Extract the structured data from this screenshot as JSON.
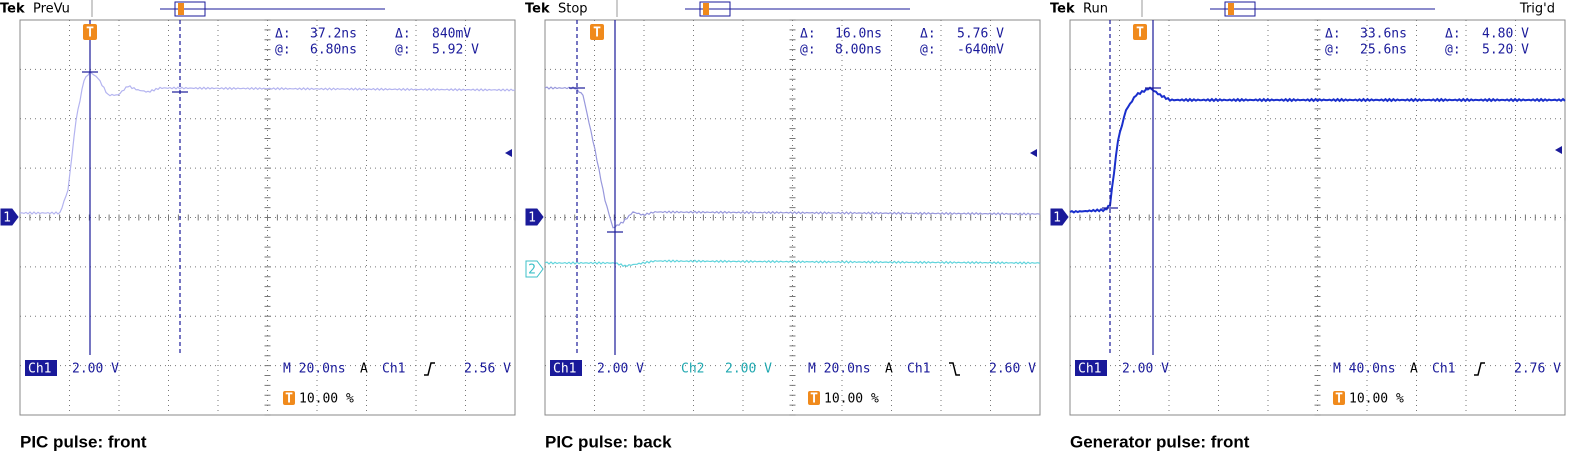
{
  "panels": [
    {
      "brand": "Tek",
      "status": "PreVu",
      "readouts": [
        [
          "Δ:",
          "37.2ns",
          "Δ:",
          "840mV"
        ],
        [
          "@:",
          "6.80ns",
          "@:",
          "5.92 V"
        ]
      ],
      "channels": [
        {
          "name": "Ch1",
          "scale": "2.00 V"
        }
      ],
      "timebase": "M 20.0ns",
      "trigger_mode": "A",
      "trigger_source": "Ch1",
      "trigger_slope": "rising",
      "trigger_level": "2.56 V",
      "trigger_marker": "T",
      "trigger_position": "10.00 %",
      "channel_markers": [
        "1"
      ],
      "caption": "PIC pulse: front"
    },
    {
      "brand": "Tek",
      "status": "Stop",
      "readouts": [
        [
          "Δ:",
          "16.0ns",
          "Δ:",
          "5.76 V"
        ],
        [
          "@:",
          "8.00ns",
          "@:",
          "-640mV"
        ]
      ],
      "channels": [
        {
          "name": "Ch1",
          "scale": "2.00 V"
        },
        {
          "name": "Ch2",
          "scale": "2.00 V"
        }
      ],
      "timebase": "M 20.0ns",
      "trigger_mode": "A",
      "trigger_source": "Ch1",
      "trigger_slope": "falling",
      "trigger_level": "2.60 V",
      "trigger_marker": "T",
      "trigger_position": "10.00 %",
      "channel_markers": [
        "1",
        "2"
      ],
      "caption": "PIC pulse: back"
    },
    {
      "brand": "Tek",
      "status": "Run",
      "trigger_state": "Trig'd",
      "readouts": [
        [
          "Δ:",
          "33.6ns",
          "Δ:",
          "4.80 V"
        ],
        [
          "@:",
          "25.6ns",
          "@:",
          "5.20 V"
        ]
      ],
      "channels": [
        {
          "name": "Ch1",
          "scale": "2.00 V"
        }
      ],
      "timebase": "M 40.0ns",
      "trigger_mode": "A",
      "trigger_source": "Ch1",
      "trigger_slope": "rising",
      "trigger_level": "2.76 V",
      "trigger_marker": "T",
      "trigger_position": "10.00 %",
      "channel_markers": [
        "1"
      ],
      "caption": "Generator pulse: front"
    }
  ]
}
